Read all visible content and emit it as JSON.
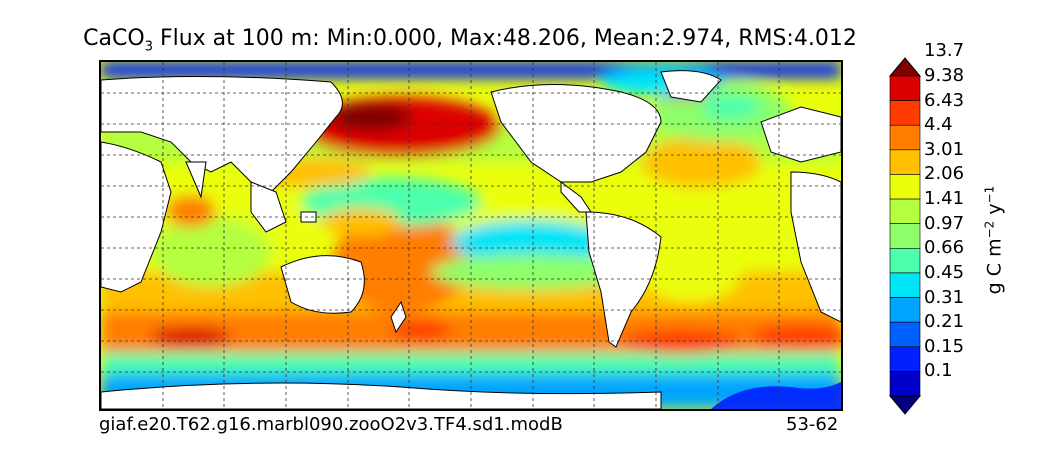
{
  "title": {
    "prefix": "CaCO",
    "subscript": "3",
    "suffix": " Flux at 100 m: Min:0.000, Max:48.206, Mean:2.974, RMS:4.012"
  },
  "footer": {
    "case_name": "giaf.e20.T62.g16.marbl090.zooO2v3.TF4.sd1.modB",
    "years": "53-62"
  },
  "colorbar": {
    "units": {
      "base": "g C m",
      "exp1": "−2",
      "mid": " y",
      "exp2": "−1"
    },
    "levels": [
      "0.1",
      "0.15",
      "0.21",
      "0.31",
      "0.45",
      "0.66",
      "0.97",
      "1.41",
      "2.06",
      "3.01",
      "4.4",
      "6.43",
      "9.38",
      "13.7"
    ],
    "colors": [
      "#00007f",
      "#0000c8",
      "#0020ff",
      "#0060ff",
      "#00a4ff",
      "#00e4f8",
      "#4cffac",
      "#8cff6a",
      "#b4ff40",
      "#eaff0c",
      "#ffc000",
      "#ff7e00",
      "#ff3c00",
      "#dd0000",
      "#7f0000"
    ]
  }
}
